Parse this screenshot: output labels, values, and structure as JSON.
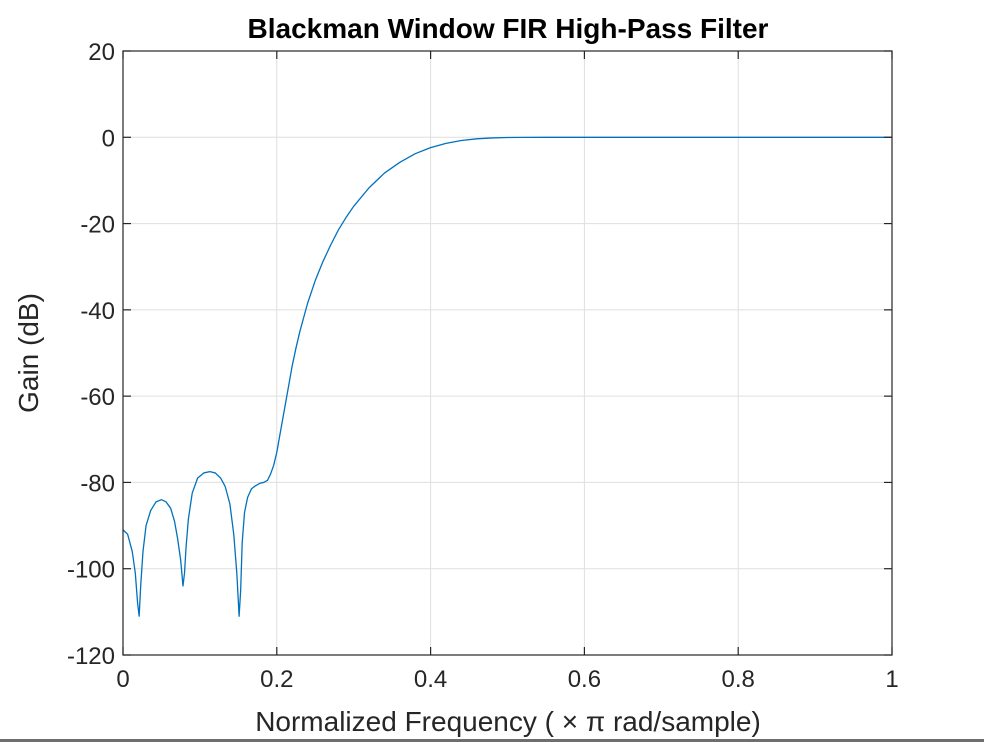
{
  "chart_data": {
    "type": "line",
    "title": "Blackman Window FIR High-Pass Filter",
    "xlabel": "Normalized  Frequency  ( × π  rad/sample)",
    "ylabel": "Gain (dB)",
    "xlim": [
      0,
      1
    ],
    "ylim": [
      -120,
      20
    ],
    "xticks": [
      0,
      0.2,
      0.4,
      0.6,
      0.8,
      1
    ],
    "xtick_labels": [
      "0",
      "0.2",
      "0.4",
      "0.6",
      "0.8",
      "1"
    ],
    "yticks": [
      20,
      0,
      -20,
      -40,
      -60,
      -80,
      -100,
      -120
    ],
    "ytick_labels": [
      "20",
      "0",
      "-20",
      "-40",
      "-60",
      "-80",
      "-100",
      "-120"
    ],
    "grid": true,
    "series": [
      {
        "color": "#0072BD",
        "x": [
          0,
          0.006,
          0.012,
          0.016,
          0.019,
          0.021,
          0.023,
          0.026,
          0.03,
          0.036,
          0.043,
          0.05,
          0.056,
          0.062,
          0.067,
          0.071,
          0.075,
          0.078,
          0.08,
          0.082,
          0.085,
          0.09,
          0.097,
          0.105,
          0.113,
          0.12,
          0.127,
          0.133,
          0.139,
          0.144,
          0.148,
          0.151,
          0.153,
          0.155,
          0.158,
          0.162,
          0.167,
          0.172,
          0.178,
          0.183,
          0.188,
          0.192,
          0.196,
          0.2,
          0.205,
          0.21,
          0.215,
          0.22,
          0.225,
          0.23,
          0.24,
          0.25,
          0.26,
          0.27,
          0.28,
          0.29,
          0.3,
          0.32,
          0.34,
          0.36,
          0.38,
          0.4,
          0.42,
          0.44,
          0.46,
          0.48,
          0.5,
          0.52,
          0.55,
          0.6,
          0.7,
          0.8,
          0.9,
          1.0
        ],
        "y": [
          -91,
          -92,
          -96,
          -101,
          -108,
          -111,
          -104,
          -96,
          -90,
          -86.5,
          -84.5,
          -84,
          -84.5,
          -86,
          -89,
          -93,
          -98,
          -104,
          -101,
          -95,
          -88.5,
          -82.5,
          -79,
          -77.8,
          -77.5,
          -77.8,
          -79,
          -81,
          -85,
          -92,
          -101,
          -111,
          -105,
          -94,
          -87,
          -83.5,
          -81.5,
          -80.8,
          -80.2,
          -80,
          -79.5,
          -78,
          -76,
          -73,
          -68,
          -63,
          -58,
          -53,
          -48.8,
          -45,
          -38.5,
          -33.2,
          -28.8,
          -25,
          -21.5,
          -18.6,
          -16,
          -11.7,
          -8.3,
          -5.8,
          -3.8,
          -2.4,
          -1.4,
          -0.75,
          -0.35,
          -0.15,
          -0.05,
          -0.02,
          0,
          0,
          0,
          0,
          0,
          0
        ]
      }
    ]
  }
}
